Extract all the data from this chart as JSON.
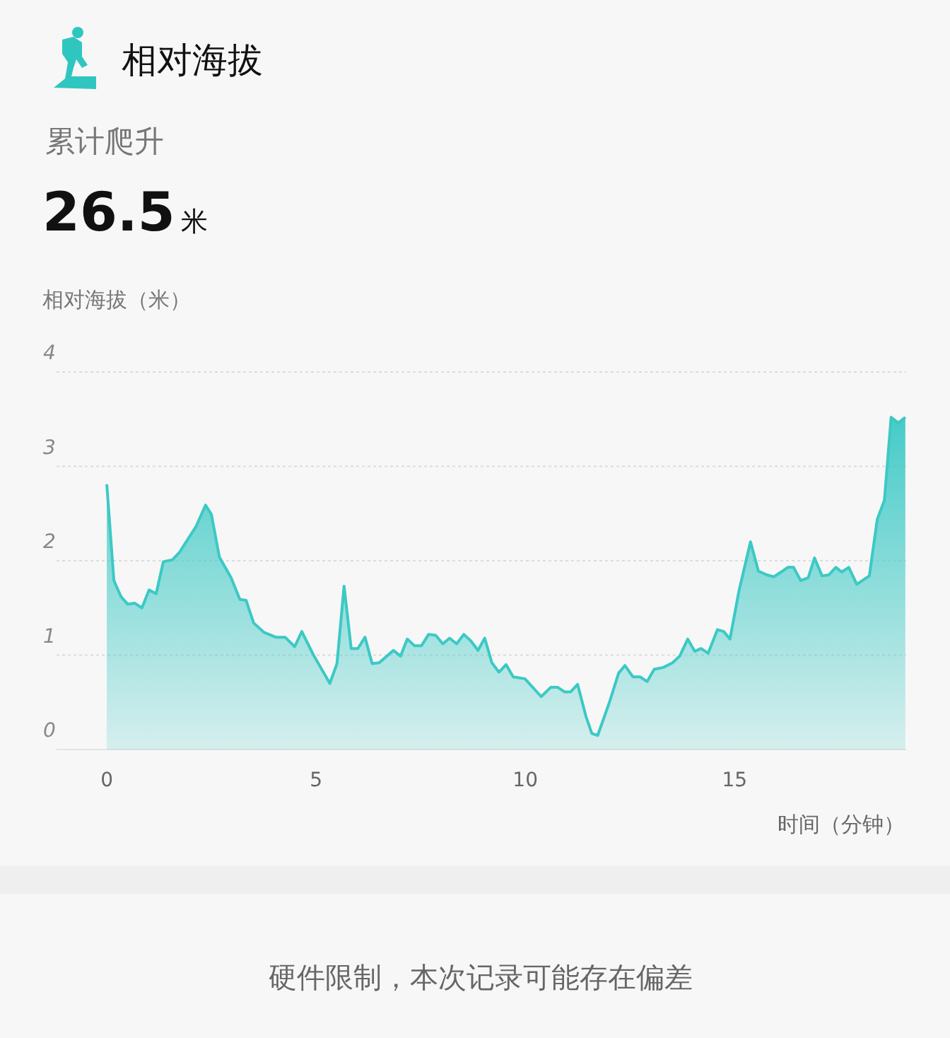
{
  "chart_data": {
    "type": "area",
    "title": "相对海拔",
    "ylabel": "相对海拔（米）",
    "xlabel": "时间（分钟）",
    "annotations": [
      "累计爬升",
      "26.5",
      "米",
      "硬件限制，本次记录可能存在偏差"
    ],
    "xlim": [
      -1.2,
      19.1
    ],
    "xticks": [
      0,
      5,
      10,
      15
    ],
    "ylim": [
      0,
      4
    ],
    "yticks": [
      0,
      1,
      2,
      3,
      4
    ],
    "grid": "y",
    "series": [
      {
        "color": "#3cc9c5",
        "x": [
          0,
          0.17,
          0.34,
          0.5,
          0.67,
          0.84,
          1.01,
          1.18,
          1.35,
          1.57,
          1.74,
          1.91,
          2.13,
          2.36,
          2.5,
          2.69,
          2.97,
          3.18,
          3.33,
          3.51,
          3.76,
          4.04,
          4.26,
          4.49,
          4.66,
          4.94,
          5.33,
          5.5,
          5.67,
          5.84,
          6.0,
          6.17,
          6.34,
          6.51,
          6.85,
          7.02,
          7.18,
          7.35,
          7.52,
          7.69,
          7.86,
          8.03,
          8.19,
          8.36,
          8.53,
          8.7,
          8.87,
          9.03,
          9.2,
          9.37,
          9.54,
          9.71,
          9.99,
          10.38,
          10.61,
          10.77,
          10.94,
          11.08,
          11.25,
          11.45,
          11.59,
          11.73,
          12.01,
          12.23,
          12.38,
          12.57,
          12.74,
          12.91,
          13.08,
          13.3,
          13.52,
          13.69,
          13.88,
          14.05,
          14.2,
          14.37,
          14.59,
          14.74,
          14.89,
          15.1,
          15.38,
          15.57,
          15.77,
          15.94,
          16.11,
          16.27,
          16.41,
          16.58,
          16.76,
          16.91,
          17.09,
          17.25,
          17.42,
          17.56,
          17.73,
          17.92,
          18.22,
          18.41,
          18.58,
          18.74,
          18.91,
          19.08
        ],
        "values": [
          2.81,
          1.79,
          1.62,
          1.54,
          1.55,
          1.5,
          1.69,
          1.65,
          1.99,
          2.01,
          2.09,
          2.21,
          2.36,
          2.59,
          2.49,
          2.04,
          1.82,
          1.59,
          1.58,
          1.34,
          1.24,
          1.19,
          1.19,
          1.09,
          1.25,
          1.0,
          0.7,
          0.91,
          1.73,
          1.07,
          1.07,
          1.19,
          0.91,
          0.92,
          1.05,
          0.99,
          1.17,
          1.1,
          1.1,
          1.22,
          1.21,
          1.12,
          1.18,
          1.12,
          1.22,
          1.15,
          1.05,
          1.18,
          0.92,
          0.82,
          0.9,
          0.77,
          0.75,
          0.56,
          0.66,
          0.66,
          0.61,
          0.61,
          0.69,
          0.35,
          0.17,
          0.15,
          0.5,
          0.81,
          0.89,
          0.77,
          0.77,
          0.72,
          0.85,
          0.87,
          0.92,
          0.99,
          1.17,
          1.04,
          1.07,
          1.02,
          1.27,
          1.25,
          1.17,
          1.67,
          2.2,
          1.89,
          1.85,
          1.83,
          1.88,
          1.93,
          1.93,
          1.79,
          1.82,
          2.03,
          1.84,
          1.85,
          1.93,
          1.88,
          1.93,
          1.75,
          1.84,
          2.44,
          2.64,
          3.52,
          3.46,
          3.52
        ]
      }
    ]
  }
}
